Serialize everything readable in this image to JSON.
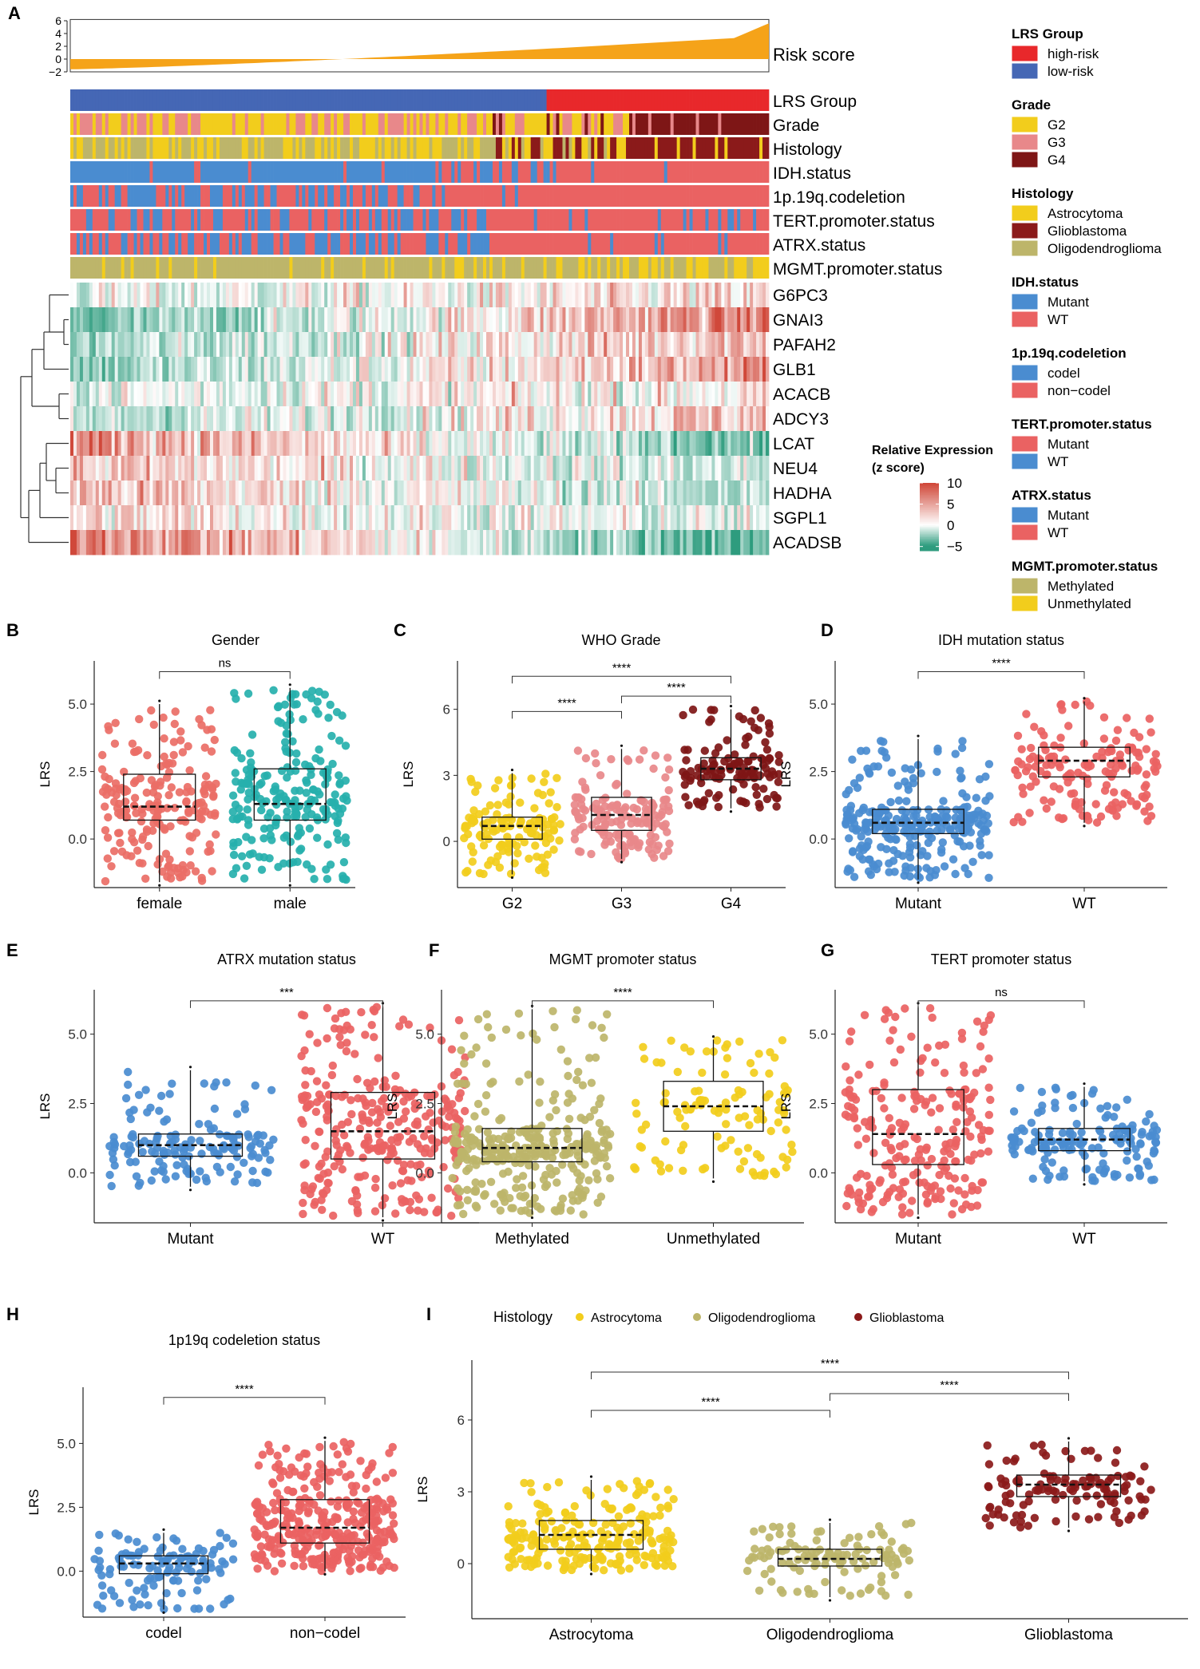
{
  "colors": {
    "high_risk": "#e8282b",
    "low_risk": "#4567b5",
    "G2": "#f2cd1c",
    "G3": "#e8888a",
    "G4": "#7e1616",
    "astro": "#f2cd1c",
    "gbm": "#8b1a1a",
    "oligo": "#bdb56a",
    "mutant_blue": "#4a8cd0",
    "wt_red": "#ea6262",
    "methylated": "#bdb56a",
    "unmethylated": "#f2cd1c",
    "risk_area": "#f5a319",
    "heat_high": "#d0483a",
    "heat_mid": "#ffffff",
    "heat_low": "#2e9c7e",
    "female": "#ea6e66",
    "male": "#26b0ad"
  },
  "panelA": {
    "letter": "A",
    "risk_axis_ticks": [
      "6",
      "4",
      "2",
      "0",
      "−2"
    ],
    "risk_label": "Risk score",
    "track_labels": [
      "LRS Group",
      "Grade",
      "Histology",
      "IDH.status",
      "1p.19q.codeletion",
      "TERT.promoter.status",
      "ATRX.status",
      "MGMT.promoter.status"
    ],
    "genes": [
      "G6PC3",
      "GNAI3",
      "PAFAH2",
      "GLB1",
      "ACACB",
      "ADCY3",
      "LCAT",
      "NEU4",
      "HADHA",
      "SGPL1",
      "ACADSB"
    ],
    "colorbar_title_1": "Relative Expression",
    "colorbar_title_2": "(z score)",
    "colorbar_ticks": [
      "10",
      "5",
      "0",
      "−5"
    ],
    "legend": [
      {
        "title": "LRS Group",
        "items": [
          {
            "label": "high-risk",
            "color": "#e8282b"
          },
          {
            "label": "low-risk",
            "color": "#4567b5"
          }
        ]
      },
      {
        "title": "Grade",
        "items": [
          {
            "label": "G2",
            "color": "#f2cd1c"
          },
          {
            "label": "G3",
            "color": "#e8888a"
          },
          {
            "label": "G4",
            "color": "#7e1616"
          }
        ]
      },
      {
        "title": "Histology",
        "items": [
          {
            "label": "Astrocytoma",
            "color": "#f2cd1c"
          },
          {
            "label": "Glioblastoma",
            "color": "#8b1a1a"
          },
          {
            "label": "Oligodendroglioma",
            "color": "#bdb56a"
          }
        ]
      },
      {
        "title": "IDH.status",
        "items": [
          {
            "label": "Mutant",
            "color": "#4a8cd0"
          },
          {
            "label": "WT",
            "color": "#ea6262"
          }
        ]
      },
      {
        "title": "1p.19q.codeletion",
        "items": [
          {
            "label": "codel",
            "color": "#4a8cd0"
          },
          {
            "label": "non−codel",
            "color": "#ea6262"
          }
        ]
      },
      {
        "title": "TERT.promoter.status",
        "items": [
          {
            "label": "Mutant",
            "color": "#ea6262"
          },
          {
            "label": "WT",
            "color": "#4a8cd0"
          }
        ]
      },
      {
        "title": "ATRX.status",
        "items": [
          {
            "label": "Mutant",
            "color": "#4a8cd0"
          },
          {
            "label": "WT",
            "color": "#ea6262"
          }
        ]
      },
      {
        "title": "MGMT.promoter.status",
        "items": [
          {
            "label": "Methylated",
            "color": "#bdb56a"
          },
          {
            "label": "Unmethylated",
            "color": "#f2cd1c"
          }
        ]
      }
    ]
  },
  "chart_data": [
    {
      "id": "B",
      "type": "scatter",
      "subtype": "box-jitter",
      "title": "Gender",
      "ylabel": "LRS",
      "ylim": [
        -1.8,
        6.6
      ],
      "yticks": [
        "0.0",
        "2.5",
        "5.0"
      ],
      "ytick_values": [
        0,
        2.5,
        5
      ],
      "categories": [
        "female",
        "male"
      ],
      "colors": [
        "#ea6e66",
        "#26b0ad"
      ],
      "median": [
        1.2,
        1.3
      ],
      "q1": [
        0.7,
        0.7
      ],
      "q3": [
        2.4,
        2.6
      ],
      "whisker_low": [
        -1.6,
        -1.6
      ],
      "whisker_high": [
        5.0,
        5.6
      ],
      "n": [
        290,
        330
      ],
      "comparisons": [
        {
          "from": 0,
          "to": 1,
          "label": "ns",
          "y": 6.2
        }
      ]
    },
    {
      "id": "C",
      "type": "scatter",
      "subtype": "box-jitter",
      "title": "WHO Grade",
      "ylabel": "LRS",
      "ylim": [
        -2.1,
        8.2
      ],
      "yticks": [
        "0",
        "3",
        "6"
      ],
      "ytick_values": [
        0,
        3,
        6
      ],
      "categories": [
        "G2",
        "G3",
        "G4"
      ],
      "colors": [
        "#f2cd1c",
        "#e8888a",
        "#7e1616"
      ],
      "median": [
        0.7,
        1.2,
        3.3
      ],
      "q1": [
        0.1,
        0.5,
        2.8
      ],
      "q3": [
        1.1,
        2.0,
        3.8
      ],
      "whisker_low": [
        -1.5,
        -0.8,
        1.5
      ],
      "whisker_high": [
        3.1,
        4.2,
        6.0
      ],
      "n": [
        190,
        220,
        180
      ],
      "comparisons": [
        {
          "from": 0,
          "to": 1,
          "label": "****",
          "y": 5.9
        },
        {
          "from": 1,
          "to": 2,
          "label": "****",
          "y": 6.6
        },
        {
          "from": 0,
          "to": 2,
          "label": "****",
          "y": 7.5
        }
      ]
    },
    {
      "id": "D",
      "type": "scatter",
      "subtype": "box-jitter",
      "title": "IDH mutation status",
      "ylabel": "LRS",
      "ylim": [
        -1.8,
        6.6
      ],
      "yticks": [
        "0.0",
        "2.5",
        "5.0"
      ],
      "ytick_values": [
        0,
        2.5,
        5
      ],
      "categories": [
        "Mutant",
        "WT"
      ],
      "colors": [
        "#4a8cd0",
        "#ea6262"
      ],
      "median": [
        0.6,
        2.9
      ],
      "q1": [
        0.2,
        2.3
      ],
      "q3": [
        1.1,
        3.4
      ],
      "whisker_low": [
        -1.5,
        0.6
      ],
      "whisker_high": [
        3.7,
        5.1
      ],
      "n": [
        400,
        230
      ],
      "comparisons": [
        {
          "from": 0,
          "to": 1,
          "label": "****",
          "y": 6.2
        }
      ]
    },
    {
      "id": "E",
      "type": "scatter",
      "subtype": "box-jitter",
      "title": "ATRX mutation status",
      "ylabel": "LRS",
      "ylim": [
        -1.8,
        6.6
      ],
      "yticks": [
        "0.0",
        "2.5",
        "5.0"
      ],
      "ytick_values": [
        0,
        2.5,
        5
      ],
      "categories": [
        "Mutant",
        "WT"
      ],
      "colors": [
        "#4a8cd0",
        "#ea6262"
      ],
      "median": [
        1.0,
        1.5
      ],
      "q1": [
        0.6,
        0.5
      ],
      "q3": [
        1.4,
        2.9
      ],
      "whisker_low": [
        -0.5,
        -1.6
      ],
      "whisker_high": [
        3.7,
        6.0
      ],
      "n": [
        220,
        430
      ],
      "comparisons": [
        {
          "from": 0,
          "to": 1,
          "label": "***",
          "y": 6.2
        }
      ]
    },
    {
      "id": "F",
      "type": "scatter",
      "subtype": "box-jitter",
      "title": "MGMT promoter status",
      "ylabel": "LRS",
      "ylim": [
        -1.8,
        6.6
      ],
      "yticks": [
        "0.0",
        "2.5",
        "5.0"
      ],
      "ytick_values": [
        0,
        2.5,
        5
      ],
      "categories": [
        "Methylated",
        "Unmethylated"
      ],
      "colors": [
        "#bdb56a",
        "#f2cd1c"
      ],
      "median": [
        0.9,
        2.4
      ],
      "q1": [
        0.4,
        1.5
      ],
      "q3": [
        1.6,
        3.3
      ],
      "whisker_low": [
        -1.5,
        -0.2
      ],
      "whisker_high": [
        5.9,
        4.8
      ],
      "n": [
        470,
        160
      ],
      "comparisons": [
        {
          "from": 0,
          "to": 1,
          "label": "****",
          "y": 6.2
        }
      ]
    },
    {
      "id": "G",
      "type": "scatter",
      "subtype": "box-jitter",
      "title": "TERT promoter status",
      "ylabel": "LRS",
      "ylim": [
        -1.8,
        6.6
      ],
      "yticks": [
        "0.0",
        "2.5",
        "5.0"
      ],
      "ytick_values": [
        0,
        2.5,
        5
      ],
      "categories": [
        "Mutant",
        "WT"
      ],
      "colors": [
        "#ea6262",
        "#4a8cd0"
      ],
      "median": [
        1.4,
        1.2
      ],
      "q1": [
        0.3,
        0.8
      ],
      "q3": [
        3.0,
        1.6
      ],
      "whisker_low": [
        -1.5,
        -0.3
      ],
      "whisker_high": [
        6.0,
        3.1
      ],
      "n": [
        330,
        230
      ],
      "comparisons": [
        {
          "from": 0,
          "to": 1,
          "label": "ns",
          "y": 6.2
        }
      ]
    },
    {
      "id": "H",
      "type": "scatter",
      "subtype": "box-jitter",
      "title": "1p19q codeletion status",
      "ylabel": "LRS",
      "ylim": [
        -1.8,
        7.2
      ],
      "yticks": [
        "0.0",
        "2.5",
        "5.0"
      ],
      "ytick_values": [
        0,
        2.5,
        5
      ],
      "categories": [
        "codel",
        "non−codel"
      ],
      "colors": [
        "#4a8cd0",
        "#ea6262"
      ],
      "median": [
        0.3,
        1.7
      ],
      "q1": [
        -0.1,
        1.1
      ],
      "q3": [
        0.6,
        2.8
      ],
      "whisker_low": [
        -1.5,
        0.0
      ],
      "whisker_high": [
        1.5,
        5.1
      ],
      "n": [
        170,
        480
      ],
      "comparisons": [
        {
          "from": 0,
          "to": 1,
          "label": "****",
          "y": 6.8
        }
      ]
    },
    {
      "id": "I",
      "type": "scatter",
      "subtype": "box-jitter",
      "title": "",
      "legend_title": "Histology",
      "ylabel": "LRS",
      "ylim": [
        -2.3,
        8.5
      ],
      "yticks": [
        "0",
        "3",
        "6"
      ],
      "ytick_values": [
        0,
        3,
        6
      ],
      "categories": [
        "Astrocytoma",
        "Oligodendroglioma",
        "Glioblastoma"
      ],
      "colors": [
        "#f2cd1c",
        "#bdb56a",
        "#8b1a1a"
      ],
      "median": [
        1.2,
        0.2,
        3.3
      ],
      "q1": [
        0.6,
        -0.1,
        2.8
      ],
      "q3": [
        1.8,
        0.6,
        3.7
      ],
      "whisker_low": [
        -0.3,
        -1.4,
        1.5
      ],
      "whisker_high": [
        3.5,
        1.7,
        5.1
      ],
      "n": [
        330,
        170,
        170
      ],
      "comparisons": [
        {
          "from": 0,
          "to": 1,
          "label": "****",
          "y": 6.4
        },
        {
          "from": 1,
          "to": 2,
          "label": "****",
          "y": 7.1
        },
        {
          "from": 0,
          "to": 2,
          "label": "****",
          "y": 8.0
        }
      ]
    }
  ]
}
